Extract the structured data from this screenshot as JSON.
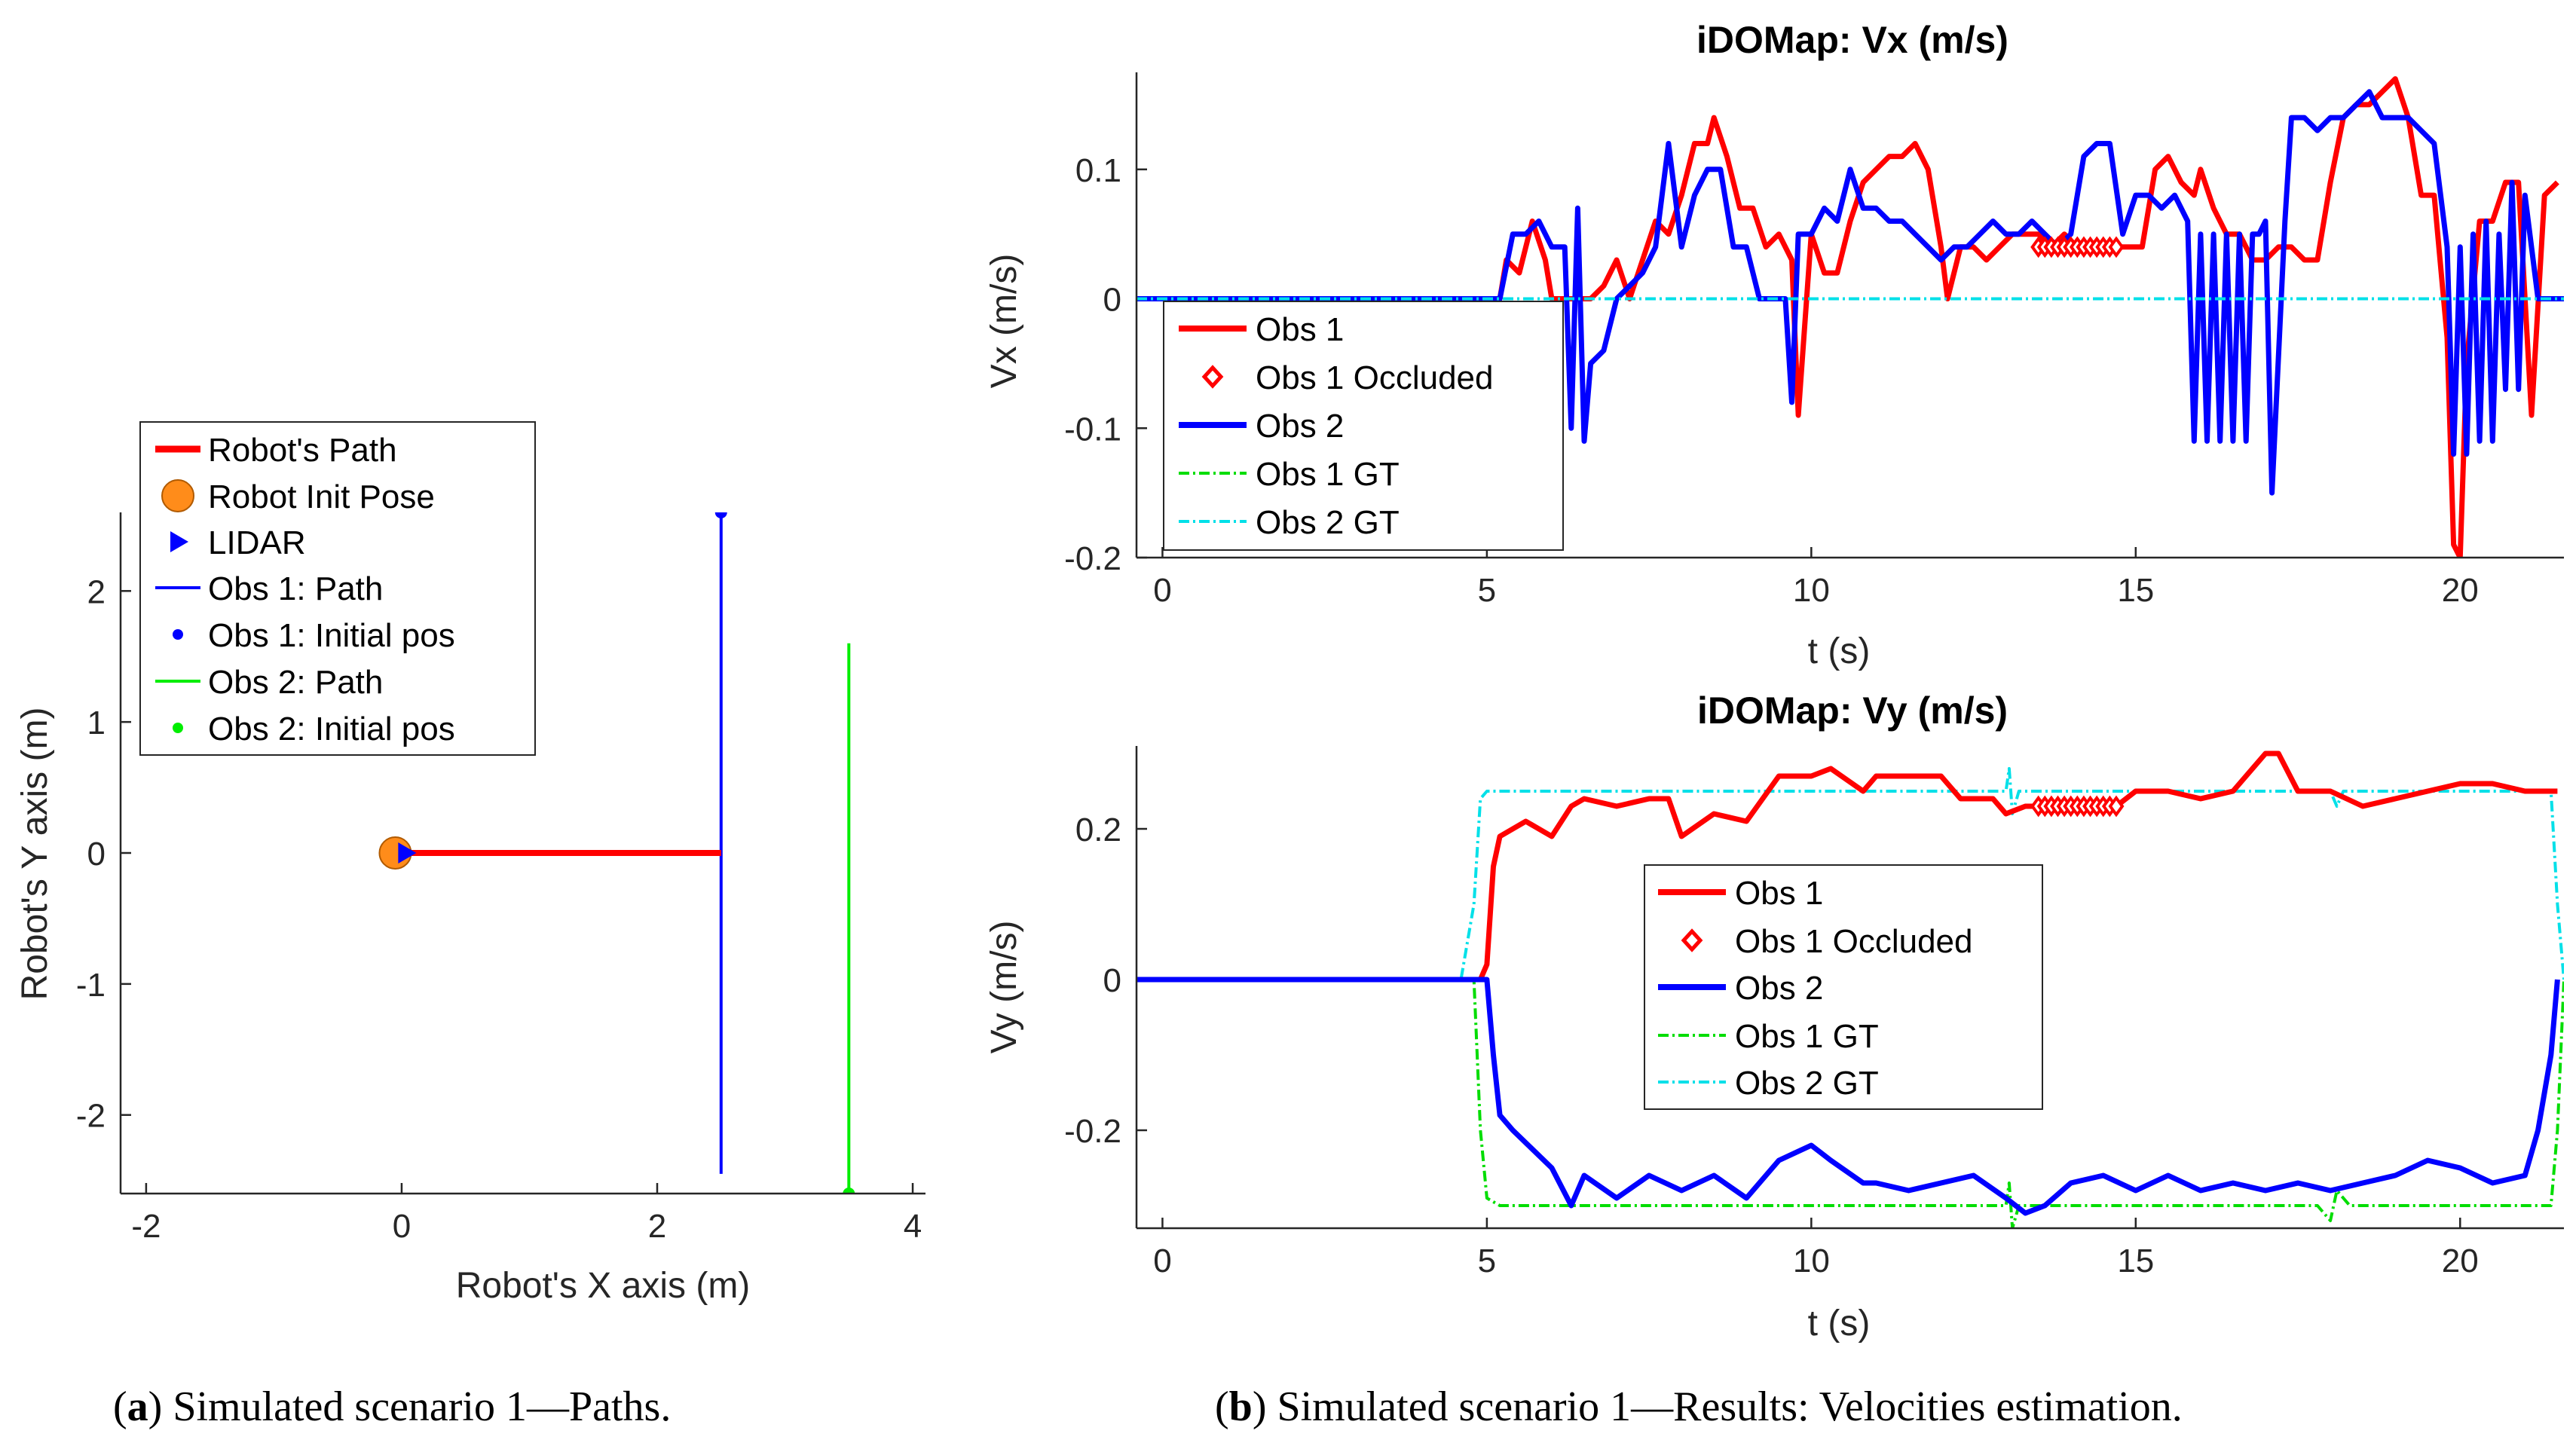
{
  "captions": {
    "a_label": "a",
    "a_text": "Simulated scenario 1—Paths.",
    "b_label": "b",
    "b_text": "Simulated scenario 1—Results: Velocities estimation."
  },
  "colors": {
    "obs1": "#ff0000",
    "obs2": "#0000ff",
    "gt1": "#00dd00",
    "gt2": "#00e0e8",
    "robot_pose": "#ff8c1a",
    "path_green": "#00ee00"
  },
  "chart_data": [
    {
      "id": "paths",
      "type": "line",
      "title": "",
      "xlabel": "Robot's X axis (m)",
      "ylabel": "Robot's Y axis (m)",
      "xlim": [
        -2.2,
        4.1
      ],
      "ylim": [
        -2.6,
        2.6
      ],
      "xticks": [
        -2,
        0,
        2,
        4
      ],
      "yticks": [
        -2,
        -1,
        0,
        1,
        2
      ],
      "xtick_labels": [
        "-2",
        "0",
        "2",
        "4"
      ],
      "ytick_labels": [
        "-2",
        "-1",
        "0",
        "1",
        "2"
      ],
      "legend": [
        "Robot's Path",
        "Robot Init Pose",
        "LIDAR",
        "Obs 1: Path",
        "Obs 1: Initial pos",
        "Obs 2: Path",
        "Obs 2: Initial pos"
      ],
      "series": [
        {
          "name": "Robot's Path",
          "x": [
            0,
            2.5
          ],
          "y": [
            0,
            0
          ]
        },
        {
          "name": "Robot Init Pose",
          "x": [
            -0.05
          ],
          "y": [
            0
          ]
        },
        {
          "name": "LIDAR",
          "x": [
            0.02
          ],
          "y": [
            0
          ]
        },
        {
          "name": "Obs 1: Path",
          "x": [
            2.5,
            2.5
          ],
          "y": [
            -2.45,
            2.6
          ]
        },
        {
          "name": "Obs 1: Initial pos",
          "x": [
            2.5
          ],
          "y": [
            2.6
          ]
        },
        {
          "name": "Obs 2: Path",
          "x": [
            3.5,
            3.5
          ],
          "y": [
            -2.6,
            1.6
          ]
        },
        {
          "name": "Obs 2: Initial pos",
          "x": [
            3.5
          ],
          "y": [
            -2.6
          ]
        }
      ]
    },
    {
      "id": "vx",
      "type": "line",
      "title": "iDOMap: Vx (m/s)",
      "xlabel": "t (s)",
      "ylabel": "Vx (m/s)",
      "xlim": [
        -0.4,
        21.6
      ],
      "ylim": [
        -0.2,
        0.175
      ],
      "xticks": [
        0,
        5,
        10,
        15,
        20
      ],
      "yticks": [
        -0.2,
        -0.1,
        0,
        0.1
      ],
      "xtick_labels": [
        "0",
        "5",
        "10",
        "15",
        "20"
      ],
      "ytick_labels": [
        "-0.2",
        "-0.1",
        "0",
        "0.1"
      ],
      "legend": [
        "Obs 1",
        "Obs 1 Occluded",
        "Obs 2",
        "Obs 1 GT",
        "Obs 2 GT"
      ],
      "series": [
        {
          "name": "Obs 1",
          "x": [
            -0.4,
            5.2,
            5.3,
            5.5,
            5.7,
            5.9,
            6.0,
            6.1,
            6.3,
            6.4,
            6.6,
            6.8,
            7.0,
            7.2,
            7.4,
            7.6,
            7.8,
            8.0,
            8.2,
            8.4,
            8.5,
            8.7,
            8.9,
            9.1,
            9.3,
            9.5,
            9.7,
            9.8,
            10.0,
            10.2,
            10.4,
            10.6,
            10.8,
            11.0,
            11.2,
            11.4,
            11.6,
            11.8,
            12.0,
            12.1,
            12.3,
            12.5,
            12.7,
            12.9,
            13.1,
            13.3,
            13.5,
            13.7,
            13.9,
            14.1,
            14.3,
            14.5,
            14.7,
            14.9,
            15.1,
            15.3,
            15.5,
            15.7,
            15.9,
            16.0,
            16.2,
            16.4,
            16.6,
            16.8,
            17.0,
            17.2,
            17.4,
            17.6,
            17.8,
            18.0,
            18.2,
            18.4,
            18.6,
            18.8,
            19.0,
            19.2,
            19.4,
            19.6,
            19.8,
            19.9,
            20.0,
            20.1,
            20.3,
            20.5,
            20.7,
            20.9,
            21.1,
            21.3,
            21.5
          ],
          "y": [
            0,
            0,
            0.03,
            0.02,
            0.06,
            0.03,
            0.0,
            0.0,
            0.0,
            0.0,
            0.0,
            0.01,
            0.03,
            0.0,
            0.03,
            0.06,
            0.05,
            0.08,
            0.12,
            0.12,
            0.14,
            0.11,
            0.07,
            0.07,
            0.04,
            0.05,
            0.03,
            -0.09,
            0.05,
            0.02,
            0.02,
            0.06,
            0.09,
            0.1,
            0.11,
            0.11,
            0.12,
            0.1,
            0.04,
            0.0,
            0.04,
            0.04,
            0.03,
            0.04,
            0.05,
            0.05,
            0.05,
            0.04,
            0.05,
            0.04,
            0.04,
            0.04,
            0.04,
            0.04,
            0.04,
            0.1,
            0.11,
            0.09,
            0.08,
            0.1,
            0.07,
            0.05,
            0.05,
            0.03,
            0.03,
            0.04,
            0.04,
            0.03,
            0.03,
            0.09,
            0.14,
            0.15,
            0.15,
            0.16,
            0.17,
            0.14,
            0.08,
            0.08,
            -0.03,
            -0.19,
            -0.2,
            -0.05,
            0.06,
            0.06,
            0.09,
            0.09,
            -0.09,
            0.08,
            0.09
          ]
        },
        {
          "name": "Obs 1 Occluded",
          "x": [
            13.5,
            13.6,
            13.7,
            13.8,
            13.9,
            14.0,
            14.1,
            14.2,
            14.3,
            14.4,
            14.5,
            14.6,
            14.7
          ],
          "y": [
            0.04,
            0.04,
            0.04,
            0.04,
            0.04,
            0.04,
            0.04,
            0.04,
            0.04,
            0.04,
            0.04,
            0.04,
            0.04
          ]
        },
        {
          "name": "Obs 2",
          "x": [
            -0.4,
            5.2,
            5.4,
            5.6,
            5.8,
            6.0,
            6.2,
            6.3,
            6.4,
            6.5,
            6.6,
            6.8,
            7.0,
            7.2,
            7.4,
            7.6,
            7.8,
            8.0,
            8.2,
            8.4,
            8.6,
            8.8,
            9.0,
            9.2,
            9.4,
            9.6,
            9.7,
            9.8,
            10.0,
            10.2,
            10.4,
            10.6,
            10.8,
            11.0,
            11.2,
            11.4,
            11.6,
            11.8,
            12.0,
            12.2,
            12.4,
            12.6,
            12.8,
            13.0,
            13.2,
            13.4,
            13.6,
            13.8,
            14.0,
            14.2,
            14.4,
            14.6,
            14.8,
            15.0,
            15.2,
            15.4,
            15.6,
            15.8,
            15.9,
            16.0,
            16.1,
            16.2,
            16.3,
            16.4,
            16.5,
            16.6,
            16.7,
            16.8,
            16.9,
            17.0,
            17.1,
            17.3,
            17.4,
            17.6,
            17.8,
            18.0,
            18.2,
            18.4,
            18.6,
            18.8,
            19.0,
            19.2,
            19.4,
            19.6,
            19.8,
            19.9,
            20.0,
            20.1,
            20.2,
            20.3,
            20.4,
            20.5,
            20.6,
            20.7,
            20.8,
            20.9,
            21.0,
            21.2,
            21.4,
            21.6
          ],
          "y": [
            0,
            0,
            0.05,
            0.05,
            0.06,
            0.04,
            0.04,
            -0.1,
            0.07,
            -0.11,
            -0.05,
            -0.04,
            0.0,
            0.01,
            0.02,
            0.04,
            0.12,
            0.04,
            0.08,
            0.1,
            0.1,
            0.04,
            0.04,
            0.0,
            0.0,
            0.0,
            -0.08,
            0.05,
            0.05,
            0.07,
            0.06,
            0.1,
            0.07,
            0.07,
            0.06,
            0.06,
            0.05,
            0.04,
            0.03,
            0.04,
            0.04,
            0.05,
            0.06,
            0.05,
            0.05,
            0.06,
            0.05,
            0.04,
            0.05,
            0.11,
            0.12,
            0.12,
            0.05,
            0.08,
            0.08,
            0.07,
            0.08,
            0.06,
            -0.11,
            0.05,
            -0.11,
            0.05,
            -0.11,
            0.05,
            -0.11,
            0.05,
            -0.11,
            0.05,
            0.05,
            0.06,
            -0.15,
            0.06,
            0.14,
            0.14,
            0.13,
            0.14,
            0.14,
            0.15,
            0.16,
            0.14,
            0.14,
            0.14,
            0.13,
            0.12,
            0.04,
            -0.12,
            0.04,
            -0.12,
            0.05,
            -0.11,
            0.06,
            -0.11,
            0.05,
            -0.07,
            0.09,
            -0.07,
            0.08,
            0.0,
            0.0,
            0.0
          ]
        },
        {
          "name": "Obs 1 GT",
          "x": [
            -0.4,
            21.6
          ],
          "y": [
            0,
            0
          ]
        },
        {
          "name": "Obs 2 GT",
          "x": [
            -0.4,
            21.6
          ],
          "y": [
            0,
            0
          ]
        }
      ]
    },
    {
      "id": "vy",
      "type": "line",
      "title": "iDOMap: Vy (m/s)",
      "xlabel": "t (s)",
      "ylabel": "Vy (m/s)",
      "xlim": [
        -0.4,
        21.6
      ],
      "ylim": [
        -0.33,
        0.31
      ],
      "xticks": [
        0,
        5,
        10,
        15,
        20
      ],
      "yticks": [
        -0.2,
        0,
        0.2
      ],
      "xtick_labels": [
        "0",
        "5",
        "10",
        "15",
        "20"
      ],
      "ytick_labels": [
        "-0.2",
        "0",
        "0.2"
      ],
      "legend": [
        "Obs 1",
        "Obs 1 Occluded",
        "Obs 2",
        "Obs 1 GT",
        "Obs 2 GT"
      ],
      "series": [
        {
          "name": "Obs 1",
          "x": [
            -0.4,
            4.9,
            5.0,
            5.1,
            5.2,
            5.4,
            5.6,
            6.0,
            6.3,
            6.5,
            7.0,
            7.5,
            7.8,
            8.0,
            8.5,
            9.0,
            9.5,
            10.0,
            10.3,
            10.8,
            11.0,
            11.5,
            12.0,
            12.3,
            12.8,
            13.0,
            13.3,
            14.0,
            14.7,
            15.0,
            15.5,
            16.0,
            16.5,
            17.0,
            17.2,
            17.5,
            18.0,
            18.5,
            19.0,
            19.5,
            20.0,
            20.5,
            21.0,
            21.5
          ],
          "y": [
            0,
            0,
            0.02,
            0.15,
            0.19,
            0.2,
            0.21,
            0.19,
            0.23,
            0.24,
            0.23,
            0.24,
            0.24,
            0.19,
            0.22,
            0.21,
            0.27,
            0.27,
            0.28,
            0.25,
            0.27,
            0.27,
            0.27,
            0.24,
            0.24,
            0.22,
            0.23,
            0.23,
            0.23,
            0.25,
            0.25,
            0.24,
            0.25,
            0.3,
            0.3,
            0.25,
            0.25,
            0.23,
            0.24,
            0.25,
            0.26,
            0.26,
            0.25,
            0.25
          ]
        },
        {
          "name": "Obs 1 Occluded",
          "x": [
            13.5,
            13.6,
            13.7,
            13.8,
            13.9,
            14.0,
            14.1,
            14.2,
            14.3,
            14.4,
            14.5,
            14.6,
            14.7
          ],
          "y": [
            0.23,
            0.23,
            0.23,
            0.23,
            0.23,
            0.23,
            0.23,
            0.23,
            0.23,
            0.23,
            0.23,
            0.23,
            0.23
          ]
        },
        {
          "name": "Obs 2",
          "x": [
            -0.4,
            5.0,
            5.1,
            5.2,
            5.4,
            6.0,
            6.3,
            6.5,
            7.0,
            7.5,
            8.0,
            8.5,
            9.0,
            9.5,
            10.0,
            10.3,
            10.8,
            11.0,
            11.5,
            12.0,
            12.5,
            13.0,
            13.3,
            13.6,
            14.0,
            14.5,
            15.0,
            15.5,
            16.0,
            16.5,
            17.0,
            17.5,
            18.0,
            18.5,
            19.0,
            19.5,
            20.0,
            20.5,
            21.0,
            21.2,
            21.4,
            21.5
          ],
          "y": [
            0,
            0,
            -0.1,
            -0.18,
            -0.2,
            -0.25,
            -0.3,
            -0.26,
            -0.29,
            -0.26,
            -0.28,
            -0.26,
            -0.29,
            -0.24,
            -0.22,
            -0.24,
            -0.27,
            -0.27,
            -0.28,
            -0.27,
            -0.26,
            -0.29,
            -0.31,
            -0.3,
            -0.27,
            -0.26,
            -0.28,
            -0.26,
            -0.28,
            -0.27,
            -0.28,
            -0.27,
            -0.28,
            -0.27,
            -0.26,
            -0.24,
            -0.25,
            -0.27,
            -0.26,
            -0.2,
            -0.1,
            0.0
          ]
        },
        {
          "name": "Obs 1 GT",
          "x": [
            -0.4,
            4.8,
            4.9,
            5.0,
            5.2,
            13.0,
            13.05,
            13.1,
            13.2,
            17.8,
            18.0,
            18.1,
            18.3,
            21.4,
            21.5,
            21.6
          ],
          "y": [
            0,
            0,
            -0.2,
            -0.29,
            -0.3,
            -0.3,
            -0.27,
            -0.33,
            -0.3,
            -0.3,
            -0.32,
            -0.28,
            -0.3,
            -0.3,
            -0.2,
            0
          ]
        },
        {
          "name": "Obs 2 GT",
          "x": [
            -0.4,
            4.6,
            4.8,
            4.9,
            5.0,
            13.0,
            13.05,
            13.1,
            13.2,
            18.0,
            18.1,
            18.2,
            21.4,
            21.5,
            21.6
          ],
          "y": [
            0,
            0,
            0.1,
            0.24,
            0.25,
            0.25,
            0.28,
            0.22,
            0.25,
            0.25,
            0.23,
            0.25,
            0.25,
            0.1,
            0
          ]
        }
      ]
    }
  ]
}
